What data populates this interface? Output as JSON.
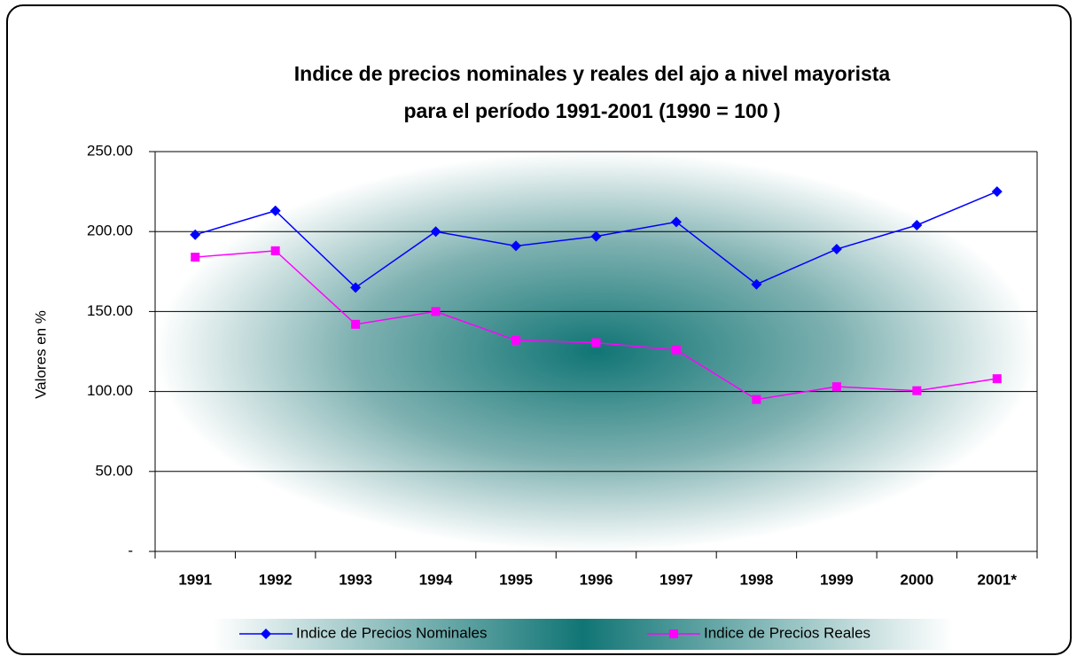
{
  "chart_data": {
    "type": "line",
    "title": [
      "Indice de precios nominales y reales del ajo a nivel mayorista",
      "para el período 1991-2001 (1990 = 100 )"
    ],
    "y_label": "Valores en %",
    "categories": [
      "1991",
      "1992",
      "1993",
      "1994",
      "1995",
      "1996",
      "1997",
      "1998",
      "1999",
      "2000",
      "2001*"
    ],
    "series": [
      {
        "name": "Indice de Precios Nominales",
        "color": "#0000ff",
        "marker": "diamond",
        "values": [
          198,
          213,
          165,
          200,
          191,
          197,
          206,
          167,
          189,
          204,
          225
        ]
      },
      {
        "name": "Indice de Precios Reales",
        "color": "#ff00ff",
        "marker": "square",
        "values": [
          184,
          188,
          142,
          150,
          132,
          130.5,
          126,
          95,
          103,
          100.5,
          108
        ]
      }
    ],
    "ylim": [
      0,
      250
    ],
    "yticks": [
      {
        "value": 0,
        "label": "-"
      },
      {
        "value": 50,
        "label": "50.00"
      },
      {
        "value": 100,
        "label": "100.00"
      },
      {
        "value": 150,
        "label": "150.00"
      },
      {
        "value": 200,
        "label": "200.00"
      },
      {
        "value": 250,
        "label": "250.00"
      }
    ],
    "grid": true,
    "legend": "bottom"
  }
}
